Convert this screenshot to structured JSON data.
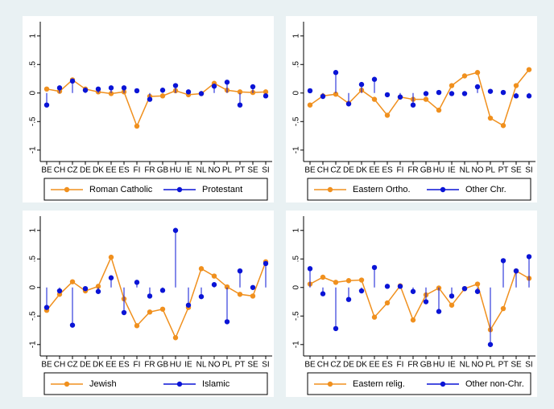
{
  "chart_data": [
    {
      "type": "line",
      "categories": [
        "BE",
        "CH",
        "CZ",
        "DE",
        "DK",
        "EE",
        "ES",
        "FI",
        "FR",
        "GB",
        "HU",
        "IE",
        "NL",
        "NO",
        "PL",
        "PT",
        "SE",
        "SI"
      ],
      "ylim": [
        -1.2,
        1.25
      ],
      "yticks": [
        {
          "value": 1,
          "label": "1"
        },
        {
          "value": 0.5,
          "label": ".5"
        },
        0,
        {
          "value": -0.5,
          "label": "-.5"
        },
        {
          "value": -1,
          "label": "-1"
        }
      ],
      "series": [
        {
          "name": "Roman Catholic",
          "color": "#f0901e",
          "kind": "line",
          "values": [
            0.07,
            0.03,
            0.23,
            0.07,
            0.02,
            -0.01,
            0.02,
            -0.58,
            -0.06,
            -0.05,
            0.04,
            -0.03,
            -0.01,
            0.17,
            0.05,
            0.02,
            0.01,
            0.02
          ]
        },
        {
          "name": "Protestant",
          "color": "#0a14d6",
          "kind": "spike",
          "values": [
            -0.21,
            0.09,
            0.21,
            0.05,
            0.07,
            0.09,
            0.09,
            0.04,
            -0.11,
            0.05,
            0.13,
            0.02,
            -0.01,
            0.12,
            0.19,
            -0.21,
            0.11,
            -0.05
          ]
        }
      ]
    },
    {
      "type": "line",
      "categories": [
        "BE",
        "CH",
        "CZ",
        "DE",
        "DK",
        "EE",
        "ES",
        "FI",
        "FR",
        "GB",
        "HU",
        "IE",
        "NL",
        "NO",
        "PL",
        "PT",
        "SE",
        "SI"
      ],
      "ylim": [
        -1.2,
        1.25
      ],
      "yticks": [
        {
          "value": 1,
          "label": "1"
        },
        {
          "value": 0.5,
          "label": ".5"
        },
        0,
        {
          "value": -0.5,
          "label": "-.5"
        },
        {
          "value": -1,
          "label": "-1"
        }
      ],
      "series": [
        {
          "name": "Eastern Ortho.",
          "color": "#f0901e",
          "kind": "line",
          "values": [
            -0.21,
            -0.05,
            -0.02,
            -0.18,
            0.05,
            -0.11,
            -0.39,
            -0.07,
            -0.11,
            -0.11,
            -0.3,
            0.13,
            0.3,
            0.36,
            -0.44,
            -0.57,
            0.13,
            0.41
          ]
        },
        {
          "name": "Other Chr.",
          "color": "#0a14d6",
          "kind": "spike",
          "values": [
            0.04,
            -0.06,
            0.36,
            -0.19,
            0.15,
            0.24,
            -0.03,
            -0.07,
            -0.21,
            -0.01,
            0.01,
            -0.01,
            -0.01,
            0.11,
            0.03,
            0.01,
            -0.05,
            -0.05
          ]
        }
      ]
    },
    {
      "type": "line",
      "categories": [
        "BE",
        "CH",
        "CZ",
        "DE",
        "DK",
        "EE",
        "ES",
        "FI",
        "FR",
        "GB",
        "HU",
        "IE",
        "NL",
        "NO",
        "PL",
        "PT",
        "SE",
        "SI"
      ],
      "ylim": [
        -1.2,
        1.25
      ],
      "yticks": [
        {
          "value": 1,
          "label": "1"
        },
        {
          "value": 0.5,
          "label": ".5"
        },
        0,
        {
          "value": -0.5,
          "label": "-.5"
        },
        {
          "value": -1,
          "label": "-1"
        }
      ],
      "series": [
        {
          "name": "Jewish",
          "color": "#f0901e",
          "kind": "line",
          "values": [
            -0.4,
            -0.12,
            0.1,
            -0.06,
            0.02,
            0.53,
            -0.2,
            -0.67,
            -0.43,
            -0.38,
            -0.88,
            -0.35,
            0.33,
            0.2,
            0.01,
            -0.12,
            -0.15,
            0.45
          ]
        },
        {
          "name": "Islamic",
          "color": "#0a14d6",
          "kind": "spike",
          "values": [
            -0.35,
            -0.06,
            -0.66,
            -0.02,
            -0.07,
            0.17,
            -0.44,
            0.09,
            -0.15,
            -0.05,
            1.0,
            -0.31,
            -0.16,
            0.05,
            -0.6,
            0.29,
            0.0,
            0.42
          ]
        }
      ]
    },
    {
      "type": "line",
      "categories": [
        "BE",
        "CH",
        "CZ",
        "DE",
        "DK",
        "EE",
        "ES",
        "FI",
        "FR",
        "GB",
        "HU",
        "IE",
        "NL",
        "NO",
        "PL",
        "PT",
        "SE",
        "SI"
      ],
      "ylim": [
        -1.2,
        1.25
      ],
      "yticks": [
        {
          "value": 1,
          "label": "1"
        },
        {
          "value": 0.5,
          "label": ".5"
        },
        0,
        {
          "value": -0.5,
          "label": "-.5"
        },
        {
          "value": -1,
          "label": "-1"
        }
      ],
      "series": [
        {
          "name": "Eastern relig.",
          "color": "#f0901e",
          "kind": "line",
          "values": [
            0.06,
            0.18,
            0.09,
            0.12,
            0.13,
            -0.52,
            -0.27,
            0.03,
            -0.57,
            -0.13,
            -0.01,
            -0.31,
            -0.02,
            0.06,
            -0.74,
            -0.37,
            0.29,
            0.16
          ]
        },
        {
          "name": "Other non-Chr.",
          "color": "#0a14d6",
          "kind": "spike",
          "values": [
            0.33,
            -0.11,
            -0.72,
            -0.21,
            -0.06,
            0.35,
            0.02,
            0.02,
            -0.07,
            -0.25,
            -0.42,
            -0.15,
            -0.02,
            -0.07,
            -1.0,
            0.47,
            0.29,
            0.54
          ]
        }
      ]
    }
  ]
}
